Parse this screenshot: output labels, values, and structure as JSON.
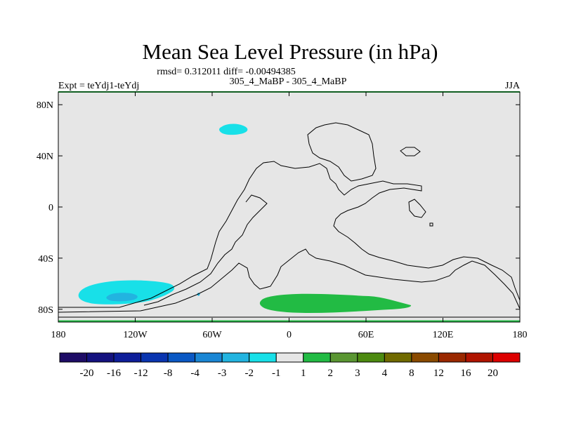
{
  "chart_data": {
    "type": "heatmap",
    "title": "Mean Sea Level Pressure (in hPa)",
    "stats": "rmsd= 0.312011 diff= -0.00494385",
    "left_label": "Expt = teYdj1-teYdj",
    "center_label": "305_4_MaBP - 305_4_MaBP",
    "right_label": "JJA",
    "x_ticks": [
      "180",
      "120W",
      "60W",
      "0",
      "60E",
      "120E",
      "180"
    ],
    "x_tick_values": [
      -180,
      -120,
      -60,
      0,
      60,
      120,
      180
    ],
    "y_ticks": [
      "80N",
      "40N",
      "0",
      "40S",
      "80S"
    ],
    "y_tick_values": [
      80,
      40,
      0,
      -40,
      -80
    ],
    "xlim": [
      -180,
      180
    ],
    "ylim": [
      -90,
      90
    ],
    "colorbar": {
      "labels": [
        "-20",
        "-16",
        "-12",
        "-8",
        "-4",
        "-3",
        "-2",
        "-1",
        "1",
        "2",
        "3",
        "4",
        "8",
        "12",
        "16",
        "20"
      ],
      "colors": [
        "#1e0c66",
        "#14127f",
        "#0e1e99",
        "#0a35b0",
        "#0a58c4",
        "#1a86d4",
        "#22b4e0",
        "#18e0e8",
        "#e6e6e6",
        "#22bb44",
        "#5a9632",
        "#4c8a10",
        "#706a00",
        "#8a4a00",
        "#9a2800",
        "#b01400",
        "#dd0000"
      ]
    },
    "contour_regions": [
      {
        "label": "arctic-low",
        "level": "-2 to -1",
        "color": "#18e0e8",
        "lon": [
          -48,
          -30
        ],
        "lat": [
          54,
          63
        ]
      },
      {
        "label": "south-pacific-low",
        "level": "-2 to -1",
        "color": "#18e0e8",
        "lon": [
          -163,
          -88
        ],
        "lat": [
          -76,
          -59
        ]
      },
      {
        "label": "south-pacific-core",
        "level": "-3 to -2",
        "color": "#22b4e0",
        "lon": [
          -140,
          -118
        ],
        "lat": [
          -73,
          -67
        ]
      },
      {
        "label": "southern-ocean-high",
        "level": "1 to 2",
        "color": "#22bb44",
        "lon": [
          -22,
          95
        ],
        "lat": [
          -82,
          -69
        ]
      }
    ]
  }
}
